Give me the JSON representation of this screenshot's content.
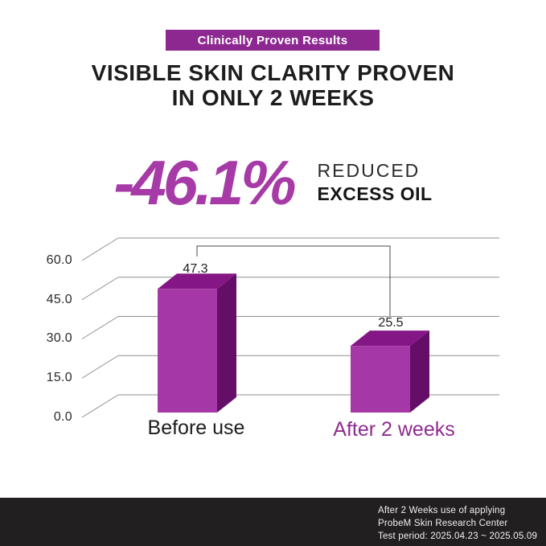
{
  "badge": {
    "label": "Clinically Proven Results",
    "bg_color": "#8D2890"
  },
  "title": {
    "line1": "VISIBLE SKIN CLARITY PROVEN",
    "line2": "IN ONLY 2 WEEKS"
  },
  "stat": {
    "value": "-46.1%",
    "value_color": "#A63AA6",
    "desc_line1": "REDUCED",
    "desc_line2": "EXCESS OIL"
  },
  "chart_data": {
    "type": "bar",
    "style": "3d-column",
    "categories": [
      "Before use",
      "After 2 weeks"
    ],
    "values": [
      47.3,
      25.5
    ],
    "value_labels": [
      "47.3",
      "25.5"
    ],
    "yticks": [
      60,
      45,
      30,
      15,
      0
    ],
    "ytick_labels": [
      "60.0",
      "45.0",
      "30.0",
      "15.0",
      "0.0"
    ],
    "ylim": [
      0,
      60
    ],
    "grid": true,
    "legend": false,
    "annotation": "bracket linking Before use bar top to After 2 weeks value (-46.1% change)",
    "colors": {
      "bar_front": "#A637A6",
      "bar_top": "#851685",
      "bar_side": "#650E68",
      "grid": "#8f8f8f",
      "bracket": "#4a4a4a"
    },
    "category_label_colors": [
      "#1d1d1d",
      "#8E2C8E"
    ]
  },
  "footer": {
    "lines": [
      "After 2 Weeks use of applying",
      "ProbeM Skin Research Center",
      "Test period: 2025.04.23 ~ 2025.05.09"
    ]
  }
}
